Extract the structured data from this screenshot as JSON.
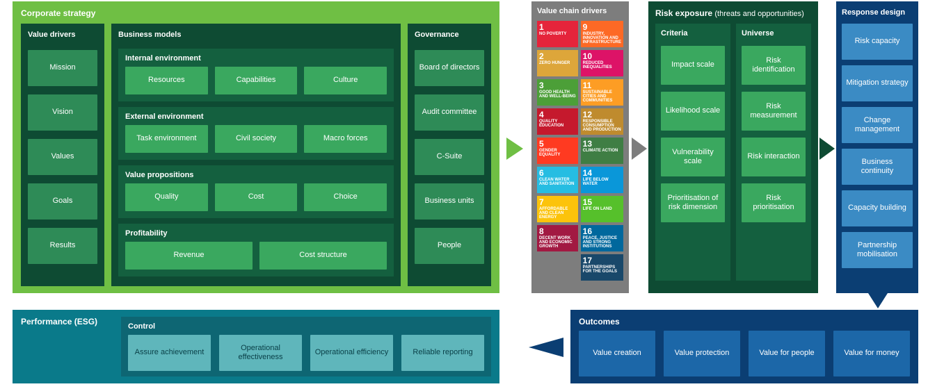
{
  "corp": {
    "title": "Corporate strategy",
    "value_drivers": {
      "title": "Value drivers",
      "items": [
        "Mission",
        "Vision",
        "Values",
        "Goals",
        "Results"
      ]
    },
    "business_models": {
      "title": "Business models",
      "groups": [
        {
          "title": "Internal environment",
          "items": [
            "Resources",
            "Capabilities",
            "Culture"
          ]
        },
        {
          "title": "External environment",
          "items": [
            "Task environment",
            "Civil society",
            "Macro forces"
          ]
        },
        {
          "title": "Value propositions",
          "items": [
            "Quality",
            "Cost",
            "Choice"
          ]
        },
        {
          "title": "Profitability",
          "items": [
            "Revenue",
            "Cost structure"
          ]
        }
      ]
    },
    "governance": {
      "title": "Governance",
      "items": [
        "Board of directors",
        "Audit committee",
        "C-Suite",
        "Business units",
        "People"
      ]
    },
    "colors": {
      "outer": "#6fbf44",
      "dark": "#0e4b33",
      "mid": "#14603f",
      "chip": "#3aa85f",
      "chip2": "#2e8b57"
    }
  },
  "vcd": {
    "title": "Value chain drivers",
    "sdgs": [
      {
        "n": "1",
        "label": "NO POVERTY",
        "color": "#e5243b"
      },
      {
        "n": "9",
        "label": "INDUSTRY, INNOVATION AND INFRASTRUCTURE",
        "color": "#fd6925"
      },
      {
        "n": "2",
        "label": "ZERO HUNGER",
        "color": "#dda63a"
      },
      {
        "n": "10",
        "label": "REDUCED INEQUALITIES",
        "color": "#dd1367"
      },
      {
        "n": "3",
        "label": "GOOD HEALTH AND WELL-BEING",
        "color": "#4c9f38"
      },
      {
        "n": "11",
        "label": "SUSTAINABLE CITIES AND COMMUNITIES",
        "color": "#fd9d24"
      },
      {
        "n": "4",
        "label": "QUALITY EDUCATION",
        "color": "#c5192d"
      },
      {
        "n": "12",
        "label": "RESPONSIBLE CONSUMPTION AND PRODUCTION",
        "color": "#bf8b2e"
      },
      {
        "n": "5",
        "label": "GENDER EQUALITY",
        "color": "#ff3a21"
      },
      {
        "n": "13",
        "label": "CLIMATE ACTION",
        "color": "#3f7e44"
      },
      {
        "n": "6",
        "label": "CLEAN WATER AND SANITATION",
        "color": "#26bde2"
      },
      {
        "n": "14",
        "label": "LIFE BELOW WATER",
        "color": "#0a97d9"
      },
      {
        "n": "7",
        "label": "AFFORDABLE AND CLEAN ENERGY",
        "color": "#fcc30b"
      },
      {
        "n": "15",
        "label": "LIFE ON LAND",
        "color": "#56c02b"
      },
      {
        "n": "8",
        "label": "DECENT WORK AND ECONOMIC GROWTH",
        "color": "#a21942"
      },
      {
        "n": "16",
        "label": "PEACE, JUSTICE AND STRONG INSTITUTIONS",
        "color": "#00689d"
      },
      {
        "n": "17",
        "label": "PARTNERSHIPS FOR THE GOALS",
        "color": "#19486a"
      }
    ],
    "color": "#7d7d7d"
  },
  "risk": {
    "title": "Risk exposure",
    "subtitle": "(threats and opportunities)",
    "criteria": {
      "title": "Criteria",
      "items": [
        "Impact scale",
        "Likelihood scale",
        "Vulnerability scale",
        "Prioritisation of risk dimension"
      ]
    },
    "universe": {
      "title": "Universe",
      "items": [
        "Risk identification",
        "Risk measurement",
        "Risk interaction",
        "Risk prioritisation"
      ]
    },
    "colors": {
      "outer": "#0e4b33",
      "col": "#14603f",
      "chip": "#3aa85f"
    }
  },
  "response": {
    "title": "Response design",
    "items": [
      "Risk capacity",
      "Mitigation strategy",
      "Change management",
      "Business continuity",
      "Capacity building",
      "Partnership mobilisation"
    ],
    "colors": {
      "outer": "#0b3e73",
      "chip": "#3b8bc4"
    }
  },
  "outcomes": {
    "title": "Outcomes",
    "items": [
      "Value creation",
      "Value protection",
      "Value for people",
      "Value for money"
    ],
    "colors": {
      "outer": "#0b3e73",
      "chip": "#1c67a8"
    }
  },
  "performance": {
    "title": "Performance (ESG)",
    "control_title": "Control",
    "items": [
      "Assure achievement",
      "Operational effectiveness",
      "Operational efficiency",
      "Reliable reporting"
    ],
    "colors": {
      "outer": "#0a7a8a",
      "box": "#0e6673",
      "chip": "#5fb6bb",
      "chip_text": "#0a4048"
    }
  }
}
